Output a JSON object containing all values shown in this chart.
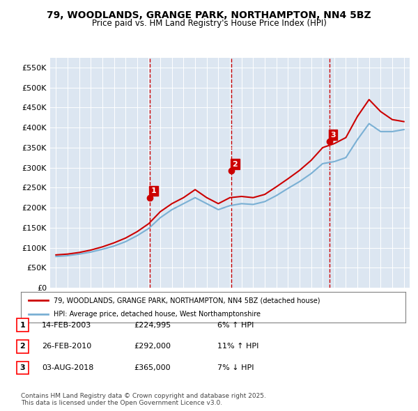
{
  "title": "79, WOODLANDS, GRANGE PARK, NORTHAMPTON, NN4 5BZ",
  "subtitle": "Price paid vs. HM Land Registry's House Price Index (HPI)",
  "ylabel_ticks": [
    "£0",
    "£50K",
    "£100K",
    "£150K",
    "£200K",
    "£250K",
    "£300K",
    "£350K",
    "£400K",
    "£450K",
    "£500K",
    "£550K"
  ],
  "ytick_values": [
    0,
    50000,
    100000,
    150000,
    200000,
    250000,
    300000,
    350000,
    400000,
    450000,
    500000,
    550000
  ],
  "xlim": [
    1994.5,
    2025.5
  ],
  "ylim": [
    0,
    575000
  ],
  "background_color": "#dce6f1",
  "plot_background": "#dce6f1",
  "legend_entry1": "79, WOODLANDS, GRANGE PARK, NORTHAMPTON, NN4 5BZ (detached house)",
  "legend_entry2": "HPI: Average price, detached house, West Northamptonshire",
  "sale1_label": "1",
  "sale1_date": "14-FEB-2003",
  "sale1_price": "£224,995",
  "sale1_hpi": "6% ↑ HPI",
  "sale2_label": "2",
  "sale2_date": "26-FEB-2010",
  "sale2_price": "£292,000",
  "sale2_hpi": "11% ↑ HPI",
  "sale3_label": "3",
  "sale3_date": "03-AUG-2018",
  "sale3_price": "£365,000",
  "sale3_hpi": "7% ↓ HPI",
  "footer": "Contains HM Land Registry data © Crown copyright and database right 2025.\nThis data is licensed under the Open Government Licence v3.0.",
  "red_line_color": "#cc0000",
  "blue_line_color": "#7ab0d4",
  "marker_color": "#cc0000",
  "vline_color": "#cc0000",
  "hpi_years": [
    1995,
    1996,
    1997,
    1998,
    1999,
    2000,
    2001,
    2002,
    2003,
    2004,
    2005,
    2006,
    2007,
    2008,
    2009,
    2010,
    2011,
    2012,
    2013,
    2014,
    2015,
    2016,
    2017,
    2018,
    2019,
    2020,
    2021,
    2022,
    2023,
    2024,
    2025
  ],
  "hpi_values": [
    78000,
    80000,
    84000,
    89000,
    96000,
    104000,
    115000,
    130000,
    148000,
    175000,
    195000,
    210000,
    225000,
    210000,
    195000,
    205000,
    210000,
    208000,
    215000,
    230000,
    248000,
    265000,
    285000,
    310000,
    315000,
    325000,
    370000,
    410000,
    390000,
    390000,
    395000
  ],
  "property_years": [
    1995,
    1996,
    1997,
    1998,
    1999,
    2000,
    2001,
    2002,
    2003,
    2004,
    2005,
    2006,
    2007,
    2008,
    2009,
    2010,
    2011,
    2012,
    2013,
    2014,
    2015,
    2016,
    2017,
    2018,
    2019,
    2020,
    2021,
    2022,
    2023,
    2024,
    2025
  ],
  "property_values": [
    82000,
    84000,
    88000,
    94000,
    102000,
    112000,
    124000,
    140000,
    160000,
    190000,
    210000,
    225000,
    245000,
    225000,
    210000,
    225000,
    228000,
    225000,
    233000,
    252000,
    272000,
    293000,
    318000,
    350000,
    360000,
    375000,
    428000,
    470000,
    440000,
    420000,
    415000
  ],
  "sale_years": [
    2003.12,
    2010.15,
    2018.58
  ],
  "sale_prices": [
    224995,
    292000,
    365000
  ],
  "vline_years": [
    2003.12,
    2010.15,
    2018.58
  ],
  "sale_numbers": [
    "1",
    "2",
    "3"
  ]
}
